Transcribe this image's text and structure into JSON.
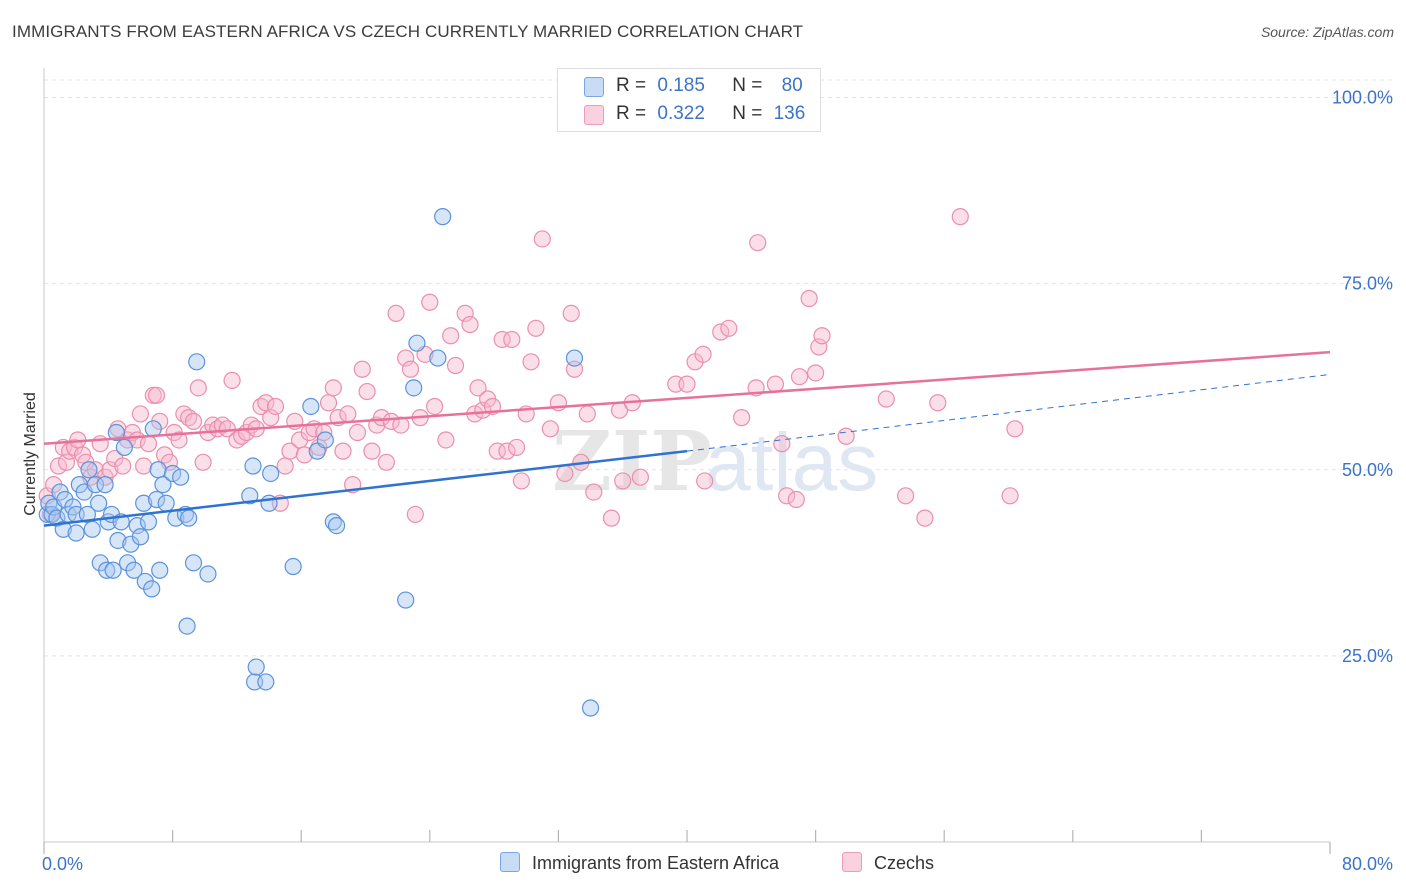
{
  "title": "IMMIGRANTS FROM EASTERN AFRICA VS CZECH CURRENTLY MARRIED CORRELATION CHART",
  "source": "Source: ZipAtlas.com",
  "watermark": {
    "zip": "ZIP",
    "atlas": "atlas"
  },
  "legend_top": [
    {
      "r_label": "R =",
      "r_value": "0.185",
      "n_label": "N =",
      "n_value": "80",
      "color": "#a7c6f0"
    },
    {
      "r_label": "R =",
      "r_value": "0.322",
      "n_label": "N =",
      "n_value": "136",
      "color": "#f6b8cb"
    }
  ],
  "bottom_legend": [
    {
      "label": "Immigrants from Eastern Africa",
      "color": "#a7c6f0"
    },
    {
      "label": "Czechs",
      "color": "#f6b8cb"
    }
  ],
  "colors": {
    "blue_stroke": "#5b93db",
    "blue_fill": "#a7c6f0",
    "blue_line": "#2f72d0",
    "pink_stroke": "#ea8fad",
    "pink_fill": "#f6b8cb",
    "pink_line": "#e8719a",
    "axis_label": "#3d73c9",
    "grid": "#e3e3e3"
  },
  "chart_data": {
    "type": "scatter",
    "title": "IMMIGRANTS FROM EASTERN AFRICA VS CZECH CURRENTLY MARRIED CORRELATION CHART",
    "xlabel": "",
    "ylabel": "Currently Married",
    "x_tick_labels": [
      "0.0%",
      "80.0%"
    ],
    "y_tick_labels": [
      "100.0%",
      "75.0%",
      "50.0%",
      "25.0%"
    ],
    "y_ticks": [
      100,
      75,
      50,
      25
    ],
    "xlim": [
      0,
      80
    ],
    "ylim": [
      0,
      102
    ],
    "grid": true,
    "legend_placement": "top-center",
    "series": [
      {
        "name": "Immigrants from Eastern Africa",
        "R": 0.185,
        "N": 80,
        "trend": {
          "x": [
            0,
            40
          ],
          "y": [
            42.5,
            52.5
          ]
        },
        "trend_extended": {
          "x": [
            40,
            80
          ],
          "y": [
            52.5,
            62.8
          ]
        },
        "points": [
          [
            0.2,
            44
          ],
          [
            0.3,
            45.5
          ],
          [
            0.5,
            44
          ],
          [
            0.6,
            45
          ],
          [
            0.8,
            43.5
          ],
          [
            1,
            47
          ],
          [
            1.2,
            42
          ],
          [
            1.3,
            46
          ],
          [
            1.5,
            44
          ],
          [
            1.8,
            45
          ],
          [
            2,
            41.5
          ],
          [
            2,
            44
          ],
          [
            2.2,
            48
          ],
          [
            2.5,
            47
          ],
          [
            2.7,
            44
          ],
          [
            2.8,
            50
          ],
          [
            3,
            42
          ],
          [
            3.2,
            48
          ],
          [
            3.4,
            45.5
          ],
          [
            3.5,
            37.5
          ],
          [
            3.8,
            48
          ],
          [
            3.9,
            36.5
          ],
          [
            4,
            43
          ],
          [
            4.2,
            44
          ],
          [
            4.3,
            36.5
          ],
          [
            4.5,
            55
          ],
          [
            4.6,
            40.5
          ],
          [
            4.8,
            43
          ],
          [
            5,
            53
          ],
          [
            5.2,
            37.5
          ],
          [
            5.4,
            40
          ],
          [
            5.6,
            36.5
          ],
          [
            5.8,
            42.5
          ],
          [
            6,
            41
          ],
          [
            6.2,
            45.5
          ],
          [
            6.3,
            35
          ],
          [
            6.5,
            43
          ],
          [
            6.7,
            34
          ],
          [
            6.8,
            55.5
          ],
          [
            7,
            46
          ],
          [
            7.1,
            50
          ],
          [
            7.2,
            36.5
          ],
          [
            7.4,
            48
          ],
          [
            7.6,
            45.5
          ],
          [
            8,
            49.5
          ],
          [
            8.2,
            43.5
          ],
          [
            8.5,
            49
          ],
          [
            8.8,
            44
          ],
          [
            8.9,
            29
          ],
          [
            9,
            43.5
          ],
          [
            9.3,
            37.5
          ],
          [
            9.5,
            64.5
          ],
          [
            10.2,
            36
          ],
          [
            12.8,
            46.5
          ],
          [
            13,
            50.5
          ],
          [
            13.1,
            21.5
          ],
          [
            13.2,
            23.5
          ],
          [
            13.8,
            21.5
          ],
          [
            14,
            45.5
          ],
          [
            14.1,
            49.5
          ],
          [
            15.5,
            37
          ],
          [
            16.6,
            58.5
          ],
          [
            17,
            52.5
          ],
          [
            17.5,
            54
          ],
          [
            18,
            43
          ],
          [
            18.2,
            42.5
          ],
          [
            22.5,
            32.5
          ],
          [
            23,
            61
          ],
          [
            23.2,
            67
          ],
          [
            24.5,
            65
          ],
          [
            24.8,
            84
          ],
          [
            33,
            65
          ],
          [
            34,
            18
          ]
        ]
      },
      {
        "name": "Czechs",
        "R": 0.322,
        "N": 136,
        "trend": {
          "x": [
            0,
            80
          ],
          "y": [
            53.5,
            65.8
          ]
        },
        "points": [
          [
            0.2,
            46.5
          ],
          [
            0.4,
            44
          ],
          [
            0.6,
            48
          ],
          [
            0.9,
            50.5
          ],
          [
            1.2,
            53
          ],
          [
            1.4,
            51
          ],
          [
            1.6,
            52.5
          ],
          [
            1.9,
            53
          ],
          [
            2.1,
            54
          ],
          [
            2.4,
            52
          ],
          [
            2.6,
            51
          ],
          [
            2.9,
            49
          ],
          [
            3.2,
            50
          ],
          [
            3.5,
            53.5
          ],
          [
            3.8,
            49
          ],
          [
            4.1,
            50
          ],
          [
            4.4,
            51.5
          ],
          [
            4.6,
            55.5
          ],
          [
            4.9,
            50.5
          ],
          [
            5.2,
            54
          ],
          [
            5.5,
            55
          ],
          [
            5.8,
            54
          ],
          [
            6,
            57.5
          ],
          [
            6.2,
            50.5
          ],
          [
            6.5,
            53.5
          ],
          [
            6.8,
            60
          ],
          [
            7,
            60
          ],
          [
            7.2,
            56.5
          ],
          [
            7.5,
            52
          ],
          [
            7.8,
            51
          ],
          [
            8.1,
            55
          ],
          [
            8.4,
            54
          ],
          [
            8.7,
            57.5
          ],
          [
            9,
            57
          ],
          [
            9.3,
            56.5
          ],
          [
            9.6,
            61
          ],
          [
            9.9,
            51
          ],
          [
            10.2,
            55
          ],
          [
            10.5,
            56
          ],
          [
            10.8,
            55.5
          ],
          [
            11.1,
            56
          ],
          [
            11.4,
            55.5
          ],
          [
            11.7,
            62
          ],
          [
            12,
            54
          ],
          [
            12.3,
            54.5
          ],
          [
            12.6,
            55
          ],
          [
            12.9,
            56
          ],
          [
            13.2,
            55.5
          ],
          [
            13.5,
            58.5
          ],
          [
            13.8,
            59
          ],
          [
            14.1,
            57
          ],
          [
            14.4,
            58.5
          ],
          [
            14.7,
            45.5
          ],
          [
            15,
            50.5
          ],
          [
            15.3,
            52.5
          ],
          [
            15.6,
            56.5
          ],
          [
            15.9,
            54
          ],
          [
            16.2,
            52
          ],
          [
            16.5,
            55
          ],
          [
            16.8,
            55.5
          ],
          [
            17.1,
            53
          ],
          [
            17.4,
            55
          ],
          [
            17.7,
            59
          ],
          [
            18,
            61
          ],
          [
            18.3,
            57
          ],
          [
            18.6,
            52.5
          ],
          [
            18.9,
            57.5
          ],
          [
            19.2,
            48
          ],
          [
            19.5,
            55
          ],
          [
            19.8,
            63.5
          ],
          [
            20.1,
            60.5
          ],
          [
            20.4,
            52.5
          ],
          [
            20.7,
            56
          ],
          [
            21,
            57
          ],
          [
            21.3,
            51
          ],
          [
            21.6,
            56.5
          ],
          [
            21.9,
            71
          ],
          [
            22.2,
            56
          ],
          [
            22.5,
            65
          ],
          [
            22.8,
            63.5
          ],
          [
            23.1,
            44
          ],
          [
            23.4,
            57
          ],
          [
            23.7,
            65.5
          ],
          [
            24,
            72.5
          ],
          [
            24.3,
            58.5
          ],
          [
            25,
            54
          ],
          [
            25.3,
            68
          ],
          [
            25.6,
            64
          ],
          [
            26.2,
            71
          ],
          [
            26.5,
            69.5
          ],
          [
            26.8,
            57.5
          ],
          [
            27,
            61
          ],
          [
            27.3,
            58
          ],
          [
            27.6,
            59.5
          ],
          [
            27.9,
            58.5
          ],
          [
            28.2,
            52.5
          ],
          [
            28.5,
            67.5
          ],
          [
            28.8,
            52.5
          ],
          [
            29.1,
            67.5
          ],
          [
            29.4,
            53
          ],
          [
            29.7,
            48.5
          ],
          [
            30,
            57.5
          ],
          [
            30.3,
            64.5
          ],
          [
            30.6,
            69
          ],
          [
            31,
            81
          ],
          [
            31.5,
            55.5
          ],
          [
            32,
            59
          ],
          [
            32.4,
            49.5
          ],
          [
            32.8,
            71
          ],
          [
            33,
            63.5
          ],
          [
            33.4,
            51
          ],
          [
            33.8,
            57.5
          ],
          [
            34.2,
            47
          ],
          [
            35.3,
            43.5
          ],
          [
            35.8,
            58
          ],
          [
            36,
            48.5
          ],
          [
            36.6,
            59
          ],
          [
            37.1,
            49
          ],
          [
            39.3,
            61.5
          ],
          [
            40,
            61.5
          ],
          [
            40.5,
            64.5
          ],
          [
            41,
            65.5
          ],
          [
            41.1,
            48.5
          ],
          [
            42.1,
            68.5
          ],
          [
            42.6,
            69
          ],
          [
            43.4,
            57
          ],
          [
            44.3,
            61
          ],
          [
            44.4,
            80.5
          ],
          [
            45.5,
            61.5
          ],
          [
            45.9,
            53.5
          ],
          [
            46.2,
            46.5
          ],
          [
            46.8,
            46
          ],
          [
            47,
            62.5
          ],
          [
            47.6,
            73
          ],
          [
            48,
            63
          ],
          [
            48.2,
            66.5
          ],
          [
            48.4,
            68
          ],
          [
            49.9,
            54.5
          ],
          [
            52.4,
            59.5
          ],
          [
            53.6,
            46.5
          ],
          [
            54.8,
            43.5
          ],
          [
            55.6,
            59
          ],
          [
            57,
            84
          ],
          [
            60.1,
            46.5
          ],
          [
            60.4,
            55.5
          ]
        ]
      }
    ]
  }
}
